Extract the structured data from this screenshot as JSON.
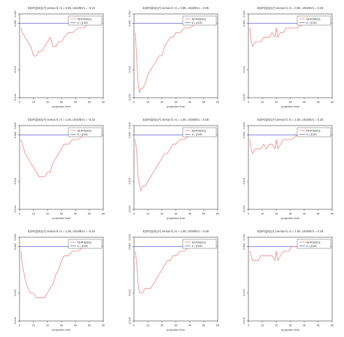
{
  "common": {
    "xlabel": "projection time",
    "x_ticks": [
      0,
      10,
      20,
      30,
      40,
      50,
      60
    ],
    "y_ticks": [
      0.002,
      0.0,
      -0.01,
      -0.016
    ],
    "y_tick_labels": [
      "0.002",
      "0.000",
      "-0.010",
      "-0.016"
    ],
    "legend": {
      "placement": "top-right",
      "entries": [
        "E[HR(t)|S(t)]",
        "θ = β̂1/θ̂1"
      ]
    },
    "colors": {
      "estimate": "#f08080",
      "reference": "#6b6bd6",
      "axis": "#333333"
    }
  },
  "chart_data": [
    {
      "type": "line",
      "title": "E[SF(t)|S(t),F] versus θ, rs = 0.95, UGs/BV1 = -0.15",
      "xlim": [
        0,
        60
      ],
      "ylim": [
        -0.016,
        0.002
      ],
      "reference_y": 0,
      "series": [
        {
          "x": [
            1,
            2,
            4,
            6,
            8,
            10,
            12,
            14,
            16,
            18,
            20,
            22,
            24,
            26,
            28,
            30,
            32,
            35,
            38,
            42,
            46,
            50,
            55,
            60
          ],
          "y": [
            -0.001,
            -0.002,
            -0.003,
            -0.004,
            -0.005,
            -0.007,
            -0.007,
            -0.006,
            -0.006,
            -0.005,
            -0.004,
            -0.003,
            -0.005,
            -0.005,
            -0.004,
            -0.004,
            -0.003,
            -0.002,
            -0.002,
            -0.001,
            -0.001,
            0,
            0,
            0
          ]
        }
      ]
    },
    {
      "type": "line",
      "title": "E[SF(t)|S(t),F] versus θ, rs = 0.95, UGs/BV1 = 0.05",
      "xlim": [
        0,
        60
      ],
      "ylim": [
        -0.016,
        0.002
      ],
      "reference_y": 0,
      "series": [
        {
          "x": [
            1,
            2,
            3,
            4,
            5,
            6,
            8,
            10,
            12,
            14,
            16,
            18,
            20,
            22,
            24,
            26,
            28,
            30,
            33,
            36,
            40,
            45,
            50,
            55,
            60
          ],
          "y": [
            -0.002,
            -0.008,
            -0.013,
            -0.015,
            -0.014,
            -0.014,
            -0.013,
            -0.011,
            -0.01,
            -0.009,
            -0.008,
            -0.007,
            -0.007,
            -0.005,
            -0.004,
            -0.003,
            -0.003,
            -0.002,
            -0.002,
            -0.001,
            -0.001,
            0,
            0,
            0,
            0
          ]
        }
      ]
    },
    {
      "type": "line",
      "title": "E[SF(t)|S(t),F] versus θ, rs = 0.95, UGs/BV1 = 0.25",
      "xlim": [
        0,
        60
      ],
      "ylim": [
        -0.016,
        0.002
      ],
      "reference_y": 0,
      "series": [
        {
          "x": [
            1,
            2,
            3,
            5,
            7,
            9,
            11,
            13,
            15,
            17,
            19,
            20,
            21,
            23,
            25,
            27,
            29,
            31,
            35,
            40,
            45,
            50,
            55,
            60
          ],
          "y": [
            -0.001,
            -0.004,
            -0.005,
            -0.004,
            -0.004,
            -0.004,
            -0.003,
            -0.003,
            -0.003,
            -0.002,
            -0.003,
            -0.001,
            -0.003,
            -0.002,
            -0.002,
            -0.001,
            -0.001,
            -0.001,
            -0.001,
            0,
            0,
            0,
            0,
            0
          ]
        }
      ]
    },
    {
      "type": "line",
      "title": "E[SF(t)|S(t),F] versus θ, rs = 1.00, UGs/BV1 = -0.15",
      "xlim": [
        0,
        60
      ],
      "ylim": [
        -0.016,
        0.002
      ],
      "reference_y": 0,
      "series": [
        {
          "x": [
            1,
            2,
            4,
            6,
            8,
            10,
            12,
            14,
            16,
            18,
            20,
            22,
            24,
            26,
            28,
            30,
            32,
            35,
            38,
            42,
            46,
            50,
            55,
            60
          ],
          "y": [
            -0.001,
            -0.002,
            -0.004,
            -0.005,
            -0.006,
            -0.007,
            -0.008,
            -0.009,
            -0.009,
            -0.009,
            -0.008,
            -0.008,
            -0.006,
            -0.005,
            -0.004,
            -0.003,
            -0.002,
            -0.002,
            -0.001,
            -0.001,
            0,
            0,
            0,
            0
          ]
        }
      ]
    },
    {
      "type": "line",
      "title": "E[SF(t)|S(t),F] versus θ, rs = 1.00, UGs/BV1 = 0.05",
      "xlim": [
        0,
        60
      ],
      "ylim": [
        -0.016,
        0.002
      ],
      "reference_y": 0,
      "series": [
        {
          "x": [
            1,
            2,
            3,
            4,
            5,
            6,
            8,
            10,
            12,
            14,
            16,
            18,
            20,
            22,
            24,
            26,
            28,
            30,
            33,
            36,
            40,
            45,
            50,
            55,
            60
          ],
          "y": [
            -0.001,
            -0.004,
            -0.009,
            -0.011,
            -0.012,
            -0.011,
            -0.011,
            -0.01,
            -0.009,
            -0.008,
            -0.007,
            -0.006,
            -0.005,
            -0.004,
            -0.004,
            -0.003,
            -0.002,
            -0.002,
            -0.001,
            -0.001,
            0,
            0,
            0,
            0,
            0
          ]
        }
      ]
    },
    {
      "type": "line",
      "title": "E[SF(t)|S(t),F] versus θ, rs = 1.00, UGs/BV1 = 0.25",
      "xlim": [
        0,
        60
      ],
      "ylim": [
        -0.016,
        0.002
      ],
      "reference_y": 0,
      "series": [
        {
          "x": [
            1,
            2,
            3,
            5,
            7,
            9,
            11,
            13,
            15,
            17,
            19,
            20,
            21,
            23,
            25,
            27,
            29,
            31,
            35,
            40,
            45,
            50,
            55,
            60
          ],
          "y": [
            -0.001,
            -0.003,
            -0.004,
            -0.003,
            -0.003,
            -0.003,
            -0.002,
            -0.003,
            -0.002,
            -0.002,
            -0.003,
            -0.001,
            -0.003,
            -0.002,
            -0.001,
            -0.001,
            -0.001,
            -0.001,
            0,
            0,
            0,
            0,
            0,
            0
          ]
        }
      ]
    },
    {
      "type": "line",
      "title": "E[SF(t)|S(t),F] versus θ, rs = 1.05, UGs/BV1 = -0.15",
      "xlim": [
        0,
        60
      ],
      "ylim": [
        -0.016,
        0.002
      ],
      "reference_y": 0,
      "series": [
        {
          "x": [
            1,
            2,
            4,
            6,
            8,
            10,
            12,
            14,
            16,
            18,
            20,
            22,
            24,
            26,
            28,
            30,
            32,
            35,
            38,
            42,
            46,
            50,
            55,
            60
          ],
          "y": [
            -0.001,
            -0.004,
            -0.007,
            -0.009,
            -0.01,
            -0.01,
            -0.011,
            -0.011,
            -0.011,
            -0.011,
            -0.01,
            -0.009,
            -0.008,
            -0.006,
            -0.005,
            -0.003,
            -0.002,
            -0.002,
            -0.001,
            -0.001,
            0,
            0,
            0,
            0
          ]
        }
      ]
    },
    {
      "type": "line",
      "title": "E[SF(t)|S(t),F] versus θ, rs = 1.05, UGs/BV1 = 0.05",
      "xlim": [
        0,
        60
      ],
      "ylim": [
        -0.016,
        0.002
      ],
      "reference_y": 0,
      "series": [
        {
          "x": [
            1,
            2,
            3,
            4,
            5,
            6,
            8,
            10,
            12,
            14,
            16,
            18,
            20,
            22,
            24,
            26,
            28,
            30,
            33,
            36,
            40,
            45,
            50,
            55,
            60
          ],
          "y": [
            -0.001,
            -0.004,
            -0.008,
            -0.01,
            -0.01,
            -0.01,
            -0.009,
            -0.009,
            -0.009,
            -0.008,
            -0.007,
            -0.006,
            -0.005,
            -0.004,
            -0.003,
            -0.003,
            -0.002,
            -0.002,
            -0.001,
            -0.001,
            0,
            0,
            0,
            0,
            0
          ]
        }
      ]
    },
    {
      "type": "line",
      "title": "E[SF(t)|S(t),F] versus θ, rs = 1.05, UGs/BV1 = 0.25",
      "xlim": [
        0,
        60
      ],
      "ylim": [
        -0.016,
        0.002
      ],
      "reference_y": 0,
      "series": [
        {
          "x": [
            1,
            2,
            3,
            5,
            7,
            9,
            11,
            13,
            15,
            17,
            19,
            20,
            21,
            23,
            25,
            27,
            29,
            31,
            35,
            40,
            45,
            50,
            55,
            60
          ],
          "y": [
            -0.001,
            -0.002,
            -0.003,
            -0.003,
            -0.003,
            -0.002,
            -0.002,
            -0.002,
            -0.002,
            -0.002,
            -0.003,
            -0.001,
            -0.003,
            -0.002,
            -0.001,
            -0.001,
            -0.001,
            0,
            0,
            0,
            0,
            0,
            0,
            0
          ]
        }
      ]
    }
  ]
}
